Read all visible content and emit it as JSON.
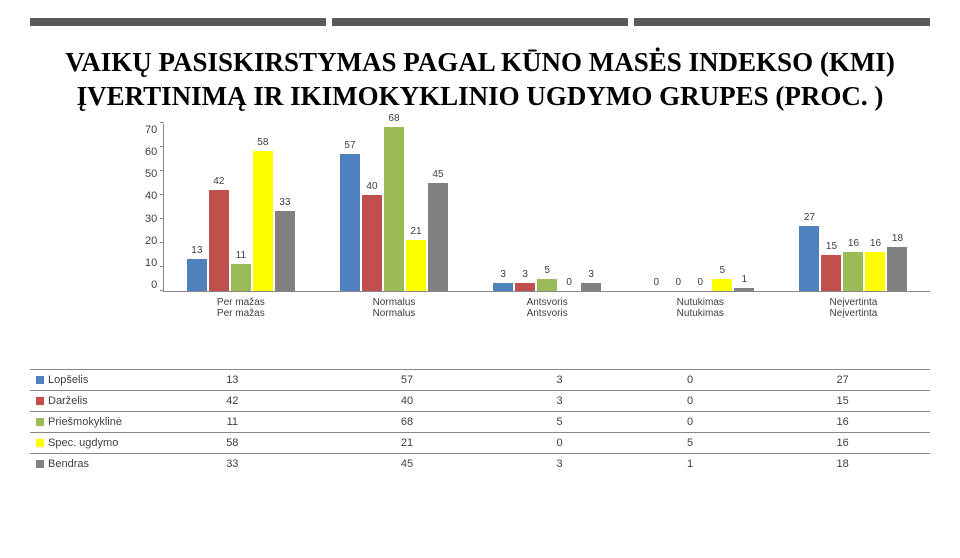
{
  "topbar_color": "#595959",
  "title": "VAIKŲ PASISKIRSTYMAS PAGAL KŪNO MASĖS INDEKSO (KMI) ĮVERTINIMĄ IR IKIMOKYKLINIO UGDYMO GRUPES (PROC. )",
  "chart": {
    "type": "bar",
    "ymax": 70,
    "ytick_step": 10,
    "yticks": [
      "70",
      "60",
      "50",
      "40",
      "30",
      "20",
      "10",
      "0"
    ],
    "categories": [
      {
        "label1": "Per mažas",
        "label2": "Per mažas"
      },
      {
        "label1": "Normalus",
        "label2": "Normalus"
      },
      {
        "label1": "Antsvoris",
        "label2": "Antsvoris"
      },
      {
        "label1": "Nutukimas",
        "label2": "Nutukimas"
      },
      {
        "label1": "Neįvertinta",
        "label2": "Neįvertinta"
      }
    ],
    "series": [
      {
        "name": "Lopšelis",
        "color": "#4f81bd",
        "values": [
          13,
          57,
          3,
          0,
          27
        ]
      },
      {
        "name": "Darželis",
        "color": "#c0504d",
        "values": [
          42,
          40,
          3,
          0,
          15
        ]
      },
      {
        "name": "Priešmokyklinė",
        "color": "#9bbb59",
        "values": [
          11,
          68,
          5,
          0,
          16
        ]
      },
      {
        "name": "Spec. ugdymo",
        "color": "#ffff00",
        "values": [
          58,
          21,
          0,
          5,
          16
        ]
      },
      {
        "name": "Bendras",
        "color": "#808080",
        "values": [
          33,
          45,
          3,
          1,
          18
        ]
      }
    ],
    "extra_labels": [
      {
        "g": 0,
        "text": "11",
        "top_offset": -5
      },
      {
        "g": 4,
        "text": "16",
        "top_offset": -5
      }
    ]
  },
  "table": {
    "columns": [
      "Per mažas",
      "Normalus",
      "Antsvoris",
      "Nutukimas",
      "Neįvertinta"
    ]
  }
}
